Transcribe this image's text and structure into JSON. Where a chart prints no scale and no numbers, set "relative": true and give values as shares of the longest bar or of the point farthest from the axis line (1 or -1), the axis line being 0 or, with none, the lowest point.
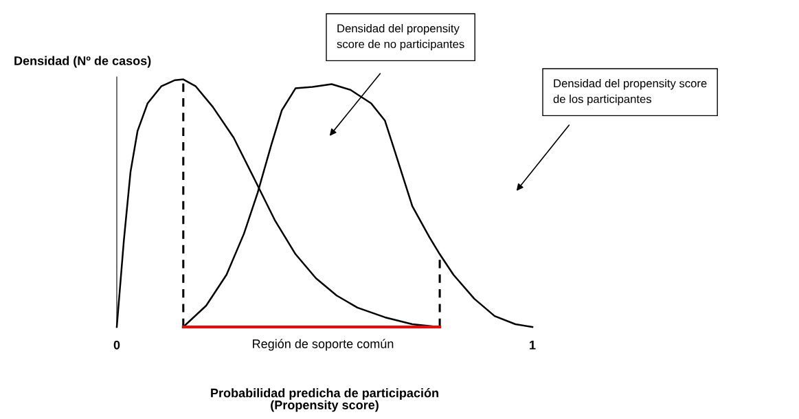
{
  "chart_data": {
    "type": "line",
    "relative": true,
    "ylabel": "Densidad (Nº de casos)",
    "xlabel": "Probabilidad predicha de participación\n(Propensity score)",
    "xlim": [
      0,
      1
    ],
    "xticks": [
      0,
      1
    ],
    "tick_labels": "x",
    "grid": false,
    "marker": "none",
    "line_style": "solid",
    "series": [
      {
        "color": "#000000",
        "x": [
          0,
          0.017,
          0.033,
          0.05,
          0.074,
          0.107,
          0.14,
          0.16,
          0.19,
          0.231,
          0.281,
          0.331,
          0.38,
          0.43,
          0.479,
          0.529,
          0.579,
          0.645,
          0.711,
          0.777
        ],
        "values": [
          0,
          0.349,
          0.626,
          0.792,
          0.903,
          0.972,
          0.997,
          1.0,
          0.972,
          0.889,
          0.765,
          0.598,
          0.432,
          0.294,
          0.197,
          0.127,
          0.078,
          0.039,
          0.011,
          0
        ]
      },
      {
        "color": "#000000",
        "x": [
          0.16,
          0.215,
          0.264,
          0.306,
          0.339,
          0.372,
          0.397,
          0.43,
          0.471,
          0.517,
          0.562,
          0.612,
          0.645,
          0.669,
          0.711,
          0.752,
          0.777,
          0.81,
          0.86,
          0.909,
          0.959,
          1.0
        ],
        "values": [
          0,
          0.086,
          0.211,
          0.377,
          0.543,
          0.737,
          0.875,
          0.964,
          0.97,
          0.981,
          0.958,
          0.903,
          0.834,
          0.709,
          0.488,
          0.363,
          0.294,
          0.211,
          0.114,
          0.044,
          0.011,
          0
        ]
      },
      {
        "color": "#000000",
        "line_style": "dashed",
        "x": [
          0.16,
          0.16
        ],
        "values": [
          0,
          1.0
        ]
      },
      {
        "color": "#000000",
        "line_style": "dashed",
        "x": [
          0.777,
          0.777
        ],
        "values": [
          0,
          0.294
        ]
      },
      {
        "color": "#ff0000",
        "x": [
          0.16,
          0.777
        ],
        "values": [
          0,
          0
        ]
      }
    ],
    "annotations": [
      "Región de soporte común",
      "Densidad del propensity\nscore de no participantes",
      "Densidad del propensity score\nde los participantes"
    ]
  }
}
